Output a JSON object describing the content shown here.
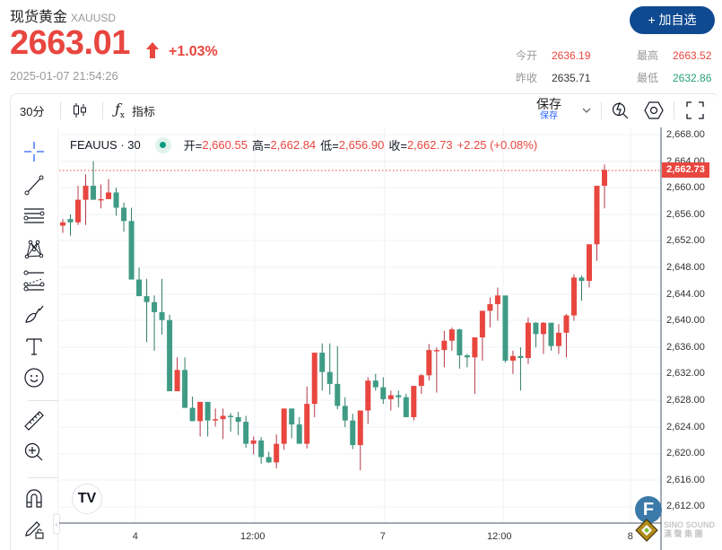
{
  "header": {
    "title": "现货黄金",
    "symbol": "XAUUSD",
    "price": "2663.01",
    "change_pct": "+1.03%",
    "timestamp": "2025-01-07 21:54:26",
    "watch_button": "+ 加自选",
    "stats": {
      "open_label": "今开",
      "open_value": "2636.19",
      "prev_close_label": "昨收",
      "prev_close_value": "2635.71",
      "high_label": "最高",
      "high_value": "2663.52",
      "low_label": "最低",
      "low_value": "2632.86"
    },
    "colors": {
      "up": "#e8463f",
      "down": "#2aa178",
      "brand": "#0f4a91"
    }
  },
  "toolbar": {
    "interval": "30分",
    "chart_type_icon": "candlestick-icon",
    "indicators_icon": "fx-icon",
    "indicators_label": "指标",
    "save_label": "保存",
    "save_sub": "保存",
    "quick_search_icon": "quick-search-icon",
    "settings_icon": "settings-hexagon-icon",
    "fullscreen_icon": "fullscreen-icon"
  },
  "left_tools": [
    {
      "name": "crosshair-icon"
    },
    {
      "name": "trend-line-icon"
    },
    {
      "name": "horizontal-lines-icon"
    },
    {
      "name": "pattern-icon"
    },
    {
      "name": "fib-icon"
    },
    {
      "name": "brush-icon"
    },
    {
      "name": "text-icon"
    },
    {
      "name": "emoji-icon"
    },
    {
      "name": "ruler-icon"
    },
    {
      "name": "zoom-in-icon"
    },
    {
      "name": "magnet-icon"
    },
    {
      "name": "lock-drawings-icon"
    }
  ],
  "legend": {
    "symbol": "FEAUUS · 30",
    "open_label": "开=",
    "open": "2,660.55",
    "high_label": "高=",
    "high": "2,662.84",
    "low_label": "低=",
    "low": "2,656.90",
    "close_label": "收=",
    "close": "2,662.73",
    "change": "+2.25 (+0.08%)"
  },
  "last_price_tag": "2,662.73",
  "watermark": {
    "badge": "F",
    "text_line1": "SINO SOUND",
    "text_line2": "漢 聲 集 團"
  },
  "tv_logo": "TV",
  "chart_data": {
    "type": "candlestick",
    "title": "FEAUUS · 30",
    "xlabel": "",
    "ylabel": "",
    "ylim": [
      2610,
      2670
    ],
    "y_ticks": [
      "2,668.00",
      "2,664.00",
      "2,660.00",
      "2,656.00",
      "2,652.00",
      "2,648.00",
      "2,644.00",
      "2,640.00",
      "2,636.00",
      "2,632.00",
      "2,628.00",
      "2,624.00",
      "2,620.00",
      "2,616.00",
      "2,612.00"
    ],
    "x_ticks": [
      {
        "label": "4",
        "x": 151
      },
      {
        "label": "12:00",
        "x": 284
      },
      {
        "label": "7",
        "x": 427
      },
      {
        "label": "12:00",
        "x": 559
      },
      {
        "label": "8",
        "x": 703
      }
    ],
    "candles": [
      [
        2654.3,
        2655.3,
        2653.2,
        2654.8
      ],
      [
        2655.3,
        2656.0,
        2652.8,
        2654.8
      ],
      [
        2654.8,
        2660.3,
        2654.4,
        2658.2
      ],
      [
        2658.2,
        2662.0,
        2654.4,
        2660.3
      ],
      [
        2660.3,
        2664.0,
        2660.3,
        2658.2
      ],
      [
        2658.2,
        2660.5,
        2656.9,
        2658.3
      ],
      [
        2658.3,
        2661.3,
        2658.5,
        2659.3
      ],
      [
        2659.3,
        2660.0,
        2655.8,
        2657.0
      ],
      [
        2657.0,
        2657.8,
        2653.4,
        2655.0
      ],
      [
        2655.0,
        2657.0,
        2646.7,
        2646.2
      ],
      [
        2646.2,
        2648.0,
        2646.6,
        2643.7
      ],
      [
        2643.7,
        2646.3,
        2636.8,
        2642.8
      ],
      [
        2642.8,
        2643.8,
        2635.5,
        2641.3
      ],
      [
        2641.3,
        2646.3,
        2637.9,
        2640.1
      ],
      [
        2640.1,
        2640.9,
        2631.6,
        2629.4
      ],
      [
        2629.4,
        2634.5,
        2629.6,
        2632.6
      ],
      [
        2632.6,
        2634.5,
        2627.0,
        2626.9
      ],
      [
        2626.9,
        2628.6,
        2624.9,
        2624.9
      ],
      [
        2624.9,
        2627.1,
        2622.6,
        2627.8
      ],
      [
        2627.8,
        2627.7,
        2622.6,
        2625.0
      ],
      [
        2625.0,
        2626.8,
        2624.1,
        2625.2
      ],
      [
        2625.2,
        2626.8,
        2622.2,
        2625.7
      ],
      [
        2625.7,
        2626.1,
        2623.3,
        2625.5
      ],
      [
        2625.5,
        2626.3,
        2622.8,
        2624.8
      ],
      [
        2624.8,
        2625.7,
        2620.9,
        2621.5
      ],
      [
        2621.5,
        2622.6,
        2619.9,
        2622.0
      ],
      [
        2622.0,
        2622.5,
        2618.5,
        2619.5
      ],
      [
        2619.5,
        2620.3,
        2618.6,
        2618.7
      ],
      [
        2618.7,
        2622.9,
        2617.8,
        2621.5
      ],
      [
        2621.5,
        2625.5,
        2620.6,
        2626.8
      ],
      [
        2626.8,
        2626.3,
        2622.3,
        2624.4
      ],
      [
        2624.4,
        2625.5,
        2621.6,
        2621.5
      ],
      [
        2621.5,
        2630.1,
        2620.8,
        2627.5
      ],
      [
        2627.5,
        2634.0,
        2625.5,
        2635.2
      ],
      [
        2635.2,
        2636.6,
        2629.5,
        2632.3
      ],
      [
        2632.3,
        2636.6,
        2628.9,
        2630.5
      ],
      [
        2630.5,
        2636.2,
        2626.7,
        2627.2
      ]
    ],
    "last_close": 2662.73,
    "notes": "OHLC values estimated from pixel positions; candle list is a representative sample of the ~78 30-min bars visible."
  }
}
